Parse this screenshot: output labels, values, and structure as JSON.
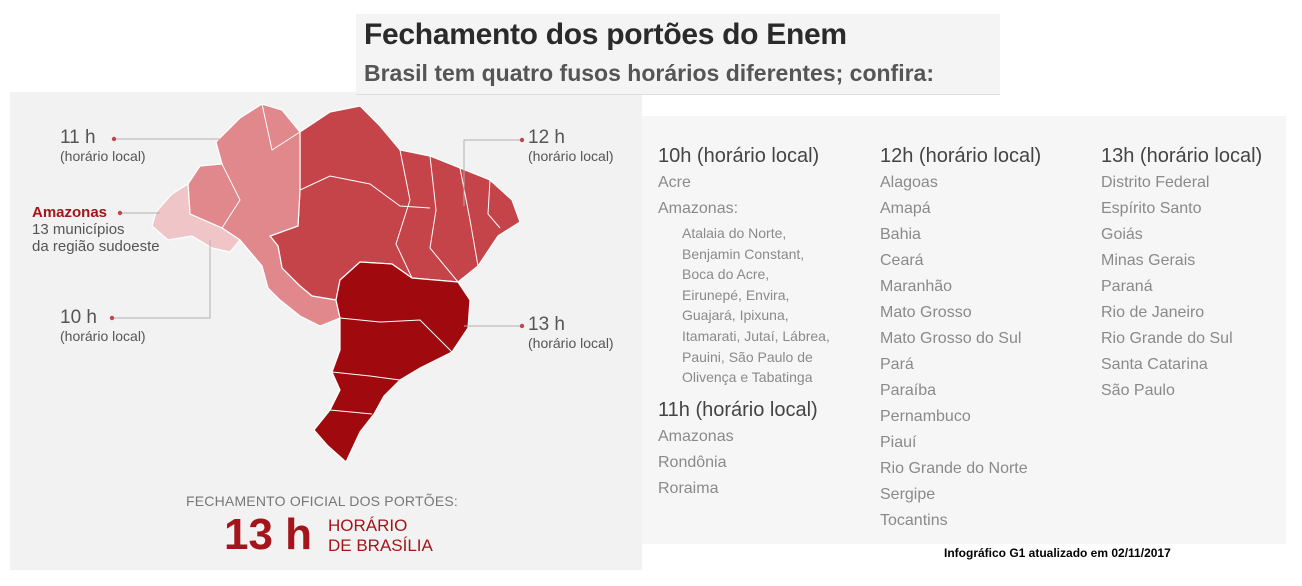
{
  "header": {
    "title": "Fechamento dos portões do Enem",
    "subtitle": "Brasil tem quatro fusos horários diferentes; confira:"
  },
  "map": {
    "labels": {
      "z11": {
        "time": "11 h",
        "note": "(horário local)"
      },
      "z12": {
        "time": "12 h",
        "note": "(horário local)"
      },
      "z10": {
        "time": "10 h",
        "note": "(horário local)"
      },
      "z13": {
        "time": "13 h",
        "note": "(horário local)"
      },
      "amazonas": {
        "name": "Amazonas",
        "line1": "13 municípios",
        "line2": "da região sudoeste"
      }
    },
    "colors": {
      "z10": "#f0c5c7",
      "z11": "#e0888c",
      "z12": "#c4444a",
      "z13": "#a00a0e",
      "accent": "#a3151a"
    }
  },
  "closing": {
    "label": "FECHAMENTO OFICIAL DOS PORTÕES:",
    "time": "13 h",
    "desc_line1": "HORÁRIO",
    "desc_line2": "DE BRASÍLIA"
  },
  "lists": {
    "col1": {
      "heading": "10h (horário local)",
      "items": [
        "Acre",
        "Amazonas:"
      ],
      "amazonas_munis": "Atalaia do Norte, Benjamin Constant, Boca do Acre, Eirunepé, Envira, Guajará, Ipixuna, Itamarati, Jutaí, Lábrea, Pauini, São Paulo de Olivença e Tabatinga",
      "heading2": "11h (horário local)",
      "items2": [
        "Amazonas",
        "Rondônia",
        "Roraima"
      ]
    },
    "col2": {
      "heading": "12h (horário local)",
      "items": [
        "Alagoas",
        "Amapá",
        "Bahia",
        "Ceará",
        "Maranhão",
        "Mato Grosso",
        "Mato Grosso do Sul",
        "Pará",
        "Paraíba",
        "Pernambuco",
        "Piauí",
        "Rio Grande do Norte",
        "Sergipe",
        "Tocantins"
      ]
    },
    "col3": {
      "heading": "13h (horário local)",
      "items": [
        "Distrito Federal",
        "Espírito Santo",
        "Goiás",
        "Minas Gerais",
        "Paraná",
        "Rio de Janeiro",
        "Rio Grande do Sul",
        "Santa Catarina",
        "São Paulo"
      ]
    }
  },
  "credit": "Infográfico G1 atualizado em 02/11/2017"
}
